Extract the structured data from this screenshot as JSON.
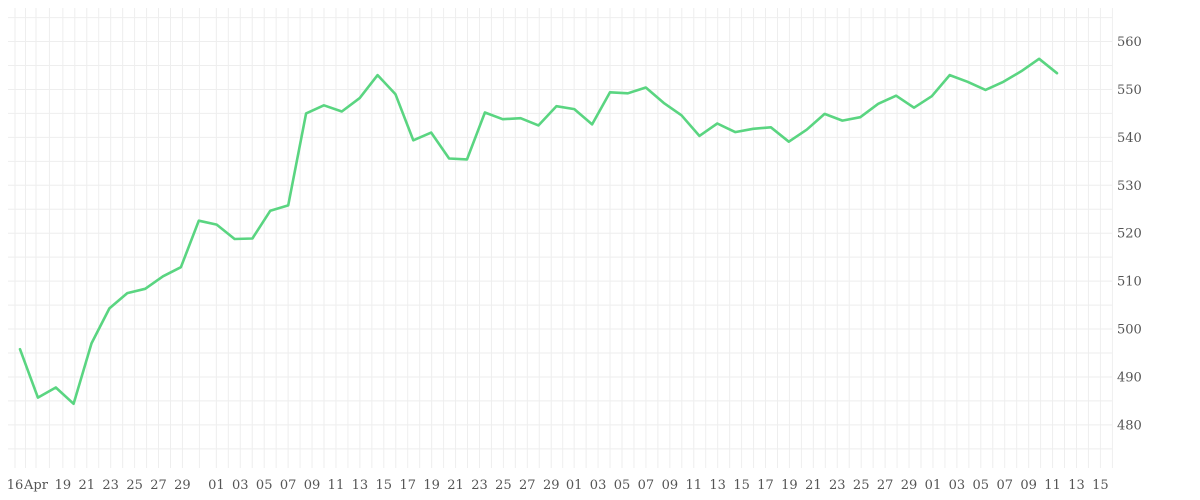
{
  "chart_data": {
    "type": "line",
    "title": "",
    "xlabel": "",
    "ylabel": "",
    "ylim": [
      471,
      567
    ],
    "grid": true,
    "y_axis_side": "right",
    "color": "#5ad581",
    "x_tick_labels": [
      "16",
      "Apr",
      "19",
      "21",
      "23",
      "25",
      "27",
      "29",
      "01",
      "03",
      "05",
      "07",
      "09",
      "11",
      "13",
      "15",
      "17",
      "19",
      "21",
      "23",
      "25",
      "27",
      "29",
      "01",
      "03",
      "05",
      "07",
      "09",
      "11",
      "13",
      "15",
      "17",
      "19",
      "21",
      "23",
      "25",
      "27",
      "29",
      "01",
      "03",
      "05",
      "07",
      "09",
      "11",
      "13",
      "15"
    ],
    "y_tick_labels": [
      "480",
      "490",
      "500",
      "510",
      "520",
      "530",
      "540",
      "550",
      "560"
    ],
    "series": [
      {
        "values": [
          495.8,
          485.7,
          487.8,
          484.4,
          497.0,
          504.3,
          507.5,
          508.4,
          511.0,
          512.9,
          522.6,
          521.8,
          518.8,
          518.9,
          524.7,
          525.8,
          545.0,
          546.7,
          545.4,
          548.2,
          553.0,
          549.0,
          539.4,
          541.0,
          535.6,
          535.4,
          545.2,
          543.8,
          544.0,
          542.5,
          546.5,
          545.9,
          542.7,
          549.4,
          549.2,
          550.4,
          547.2,
          544.6,
          540.3,
          542.9,
          541.1,
          541.8,
          542.1,
          539.1,
          541.6,
          544.9,
          543.5,
          544.2,
          547.0,
          548.7,
          546.2,
          548.6,
          553.0,
          551.6,
          549.9,
          551.6,
          553.8,
          556.4,
          553.4
        ]
      }
    ]
  }
}
